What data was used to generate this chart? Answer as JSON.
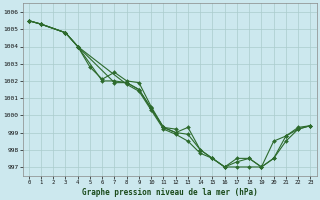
{
  "xlabel": "Graphe pression niveau de la mer (hPa)",
  "ylim": [
    996.5,
    1006.5
  ],
  "xlim": [
    -0.5,
    23.5
  ],
  "yticks": [
    997,
    998,
    999,
    1000,
    1001,
    1002,
    1003,
    1004,
    1005,
    1006
  ],
  "xticks": [
    0,
    1,
    2,
    3,
    4,
    5,
    6,
    7,
    8,
    9,
    10,
    11,
    12,
    13,
    14,
    15,
    16,
    17,
    18,
    19,
    20,
    21,
    22,
    23
  ],
  "bg_color": "#cce8ee",
  "grid_color": "#aacccc",
  "line_color": "#2d6b2d",
  "lines": [
    {
      "x": [
        0,
        1,
        3,
        4,
        5,
        6,
        7,
        8,
        9,
        10,
        11,
        12
      ],
      "y": [
        1005.5,
        1005.3,
        1004.8,
        1004.0,
        1002.8,
        1002.1,
        1002.5,
        1002.0,
        1001.9,
        1000.5,
        999.3,
        999.2
      ]
    },
    {
      "x": [
        0,
        1,
        3,
        4,
        6,
        7,
        8,
        9,
        10,
        11,
        12,
        13,
        14,
        15,
        16,
        17,
        18,
        19,
        20,
        21,
        22,
        23
      ],
      "y": [
        1005.5,
        1005.3,
        1004.8,
        1004.0,
        1002.0,
        1002.0,
        1001.9,
        1001.5,
        1000.4,
        999.3,
        999.0,
        999.3,
        998.0,
        997.5,
        997.0,
        997.0,
        997.0,
        997.0,
        998.5,
        998.8,
        999.2,
        999.4
      ]
    },
    {
      "x": [
        0,
        1,
        3,
        4,
        7,
        8,
        9,
        10,
        11,
        12,
        13,
        14,
        15,
        16,
        17,
        18,
        19,
        20,
        21,
        22,
        23
      ],
      "y": [
        1005.5,
        1005.3,
        1004.8,
        1004.0,
        1001.9,
        1001.9,
        1001.5,
        1000.4,
        999.3,
        999.0,
        998.9,
        998.0,
        997.5,
        997.0,
        997.3,
        997.5,
        997.0,
        997.5,
        998.5,
        999.2,
        999.4
      ]
    },
    {
      "x": [
        0,
        1,
        3,
        4,
        8,
        9,
        10,
        11,
        12,
        13,
        14,
        15,
        16,
        17,
        18,
        19,
        20,
        21,
        22,
        23
      ],
      "y": [
        1005.5,
        1005.3,
        1004.8,
        1004.0,
        1001.8,
        1001.4,
        1000.3,
        999.2,
        998.9,
        998.5,
        997.8,
        997.5,
        997.0,
        997.5,
        997.5,
        997.0,
        997.5,
        998.8,
        999.3,
        999.4
      ]
    }
  ]
}
